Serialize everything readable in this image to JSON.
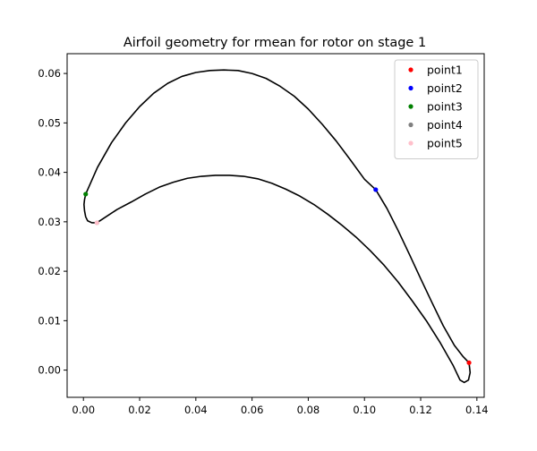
{
  "chart_data": {
    "type": "line",
    "title": "Airfoil geometry for rmean for rotor on stage 1",
    "xlabel": "",
    "ylabel": "",
    "xlim": [
      -0.0058,
      0.1426
    ],
    "ylim": [
      -0.0055,
      0.064
    ],
    "xticks": [
      0.0,
      0.02,
      0.04,
      0.06,
      0.08,
      0.1,
      0.12,
      0.14
    ],
    "xtick_labels": [
      "0.00",
      "0.02",
      "0.04",
      "0.06",
      "0.08",
      "0.10",
      "0.12",
      "0.14"
    ],
    "yticks": [
      0.0,
      0.01,
      0.02,
      0.03,
      0.04,
      0.05,
      0.06
    ],
    "ytick_labels": [
      "0.00",
      "0.01",
      "0.02",
      "0.03",
      "0.04",
      "0.05",
      "0.06"
    ],
    "grid": false,
    "legend_position": "top-right",
    "line_color": "#000000",
    "series": [
      {
        "values": [
          [
            0.0008,
            0.0356
          ],
          [
            0.005,
            0.041
          ],
          [
            0.01,
            0.046
          ],
          [
            0.015,
            0.05
          ],
          [
            0.02,
            0.0533
          ],
          [
            0.025,
            0.056
          ],
          [
            0.03,
            0.058
          ],
          [
            0.035,
            0.0594
          ],
          [
            0.04,
            0.0602
          ],
          [
            0.045,
            0.0606
          ],
          [
            0.05,
            0.0607
          ],
          [
            0.055,
            0.0606
          ],
          [
            0.06,
            0.06
          ],
          [
            0.065,
            0.059
          ],
          [
            0.07,
            0.0574
          ],
          [
            0.075,
            0.0554
          ],
          [
            0.08,
            0.0528
          ],
          [
            0.085,
            0.0497
          ],
          [
            0.09,
            0.0463
          ],
          [
            0.095,
            0.0425
          ],
          [
            0.1,
            0.0386
          ],
          [
            0.104,
            0.0365
          ],
          [
            0.108,
            0.0327
          ],
          [
            0.112,
            0.0282
          ],
          [
            0.116,
            0.0234
          ],
          [
            0.12,
            0.0185
          ],
          [
            0.124,
            0.0137
          ],
          [
            0.128,
            0.009
          ],
          [
            0.132,
            0.005
          ],
          [
            0.135,
            0.0028
          ],
          [
            0.1372,
            0.0015
          ],
          [
            0.1376,
            -0.0005
          ],
          [
            0.137,
            -0.002
          ],
          [
            0.1355,
            -0.0025
          ],
          [
            0.134,
            -0.002
          ],
          [
            0.1315,
            0.001
          ],
          [
            0.127,
            0.0055
          ],
          [
            0.122,
            0.01
          ],
          [
            0.117,
            0.014
          ],
          [
            0.112,
            0.0178
          ],
          [
            0.107,
            0.0212
          ],
          [
            0.102,
            0.0242
          ],
          [
            0.097,
            0.0269
          ],
          [
            0.092,
            0.0293
          ],
          [
            0.087,
            0.0315
          ],
          [
            0.082,
            0.0335
          ],
          [
            0.077,
            0.0352
          ],
          [
            0.072,
            0.0366
          ],
          [
            0.067,
            0.0378
          ],
          [
            0.062,
            0.0387
          ],
          [
            0.057,
            0.0392
          ],
          [
            0.052,
            0.0394
          ],
          [
            0.047,
            0.0394
          ],
          [
            0.042,
            0.0392
          ],
          [
            0.037,
            0.0388
          ],
          [
            0.032,
            0.038
          ],
          [
            0.027,
            0.037
          ],
          [
            0.022,
            0.0356
          ],
          [
            0.017,
            0.034
          ],
          [
            0.012,
            0.0325
          ],
          [
            0.008,
            0.031
          ],
          [
            0.0048,
            0.0298
          ],
          [
            0.003,
            0.0298
          ],
          [
            0.0015,
            0.0302
          ],
          [
            0.0008,
            0.031
          ],
          [
            0.0004,
            0.0322
          ],
          [
            0.0002,
            0.0335
          ],
          [
            0.0004,
            0.0345
          ],
          [
            0.0008,
            0.0356
          ]
        ]
      }
    ],
    "points": [
      {
        "name": "point1",
        "x": 0.1372,
        "y": 0.0015,
        "color": "#ff0000"
      },
      {
        "name": "point2",
        "x": 0.104,
        "y": 0.0365,
        "color": "#0000ff"
      },
      {
        "name": "point3",
        "x": 0.0008,
        "y": 0.0356,
        "color": "#008000"
      },
      {
        "name": "point4",
        "x": 0.0048,
        "y": 0.0298,
        "color": "#808080"
      },
      {
        "name": "point5",
        "x": 0.0048,
        "y": 0.0298,
        "color": "#ffc0cb"
      }
    ]
  }
}
